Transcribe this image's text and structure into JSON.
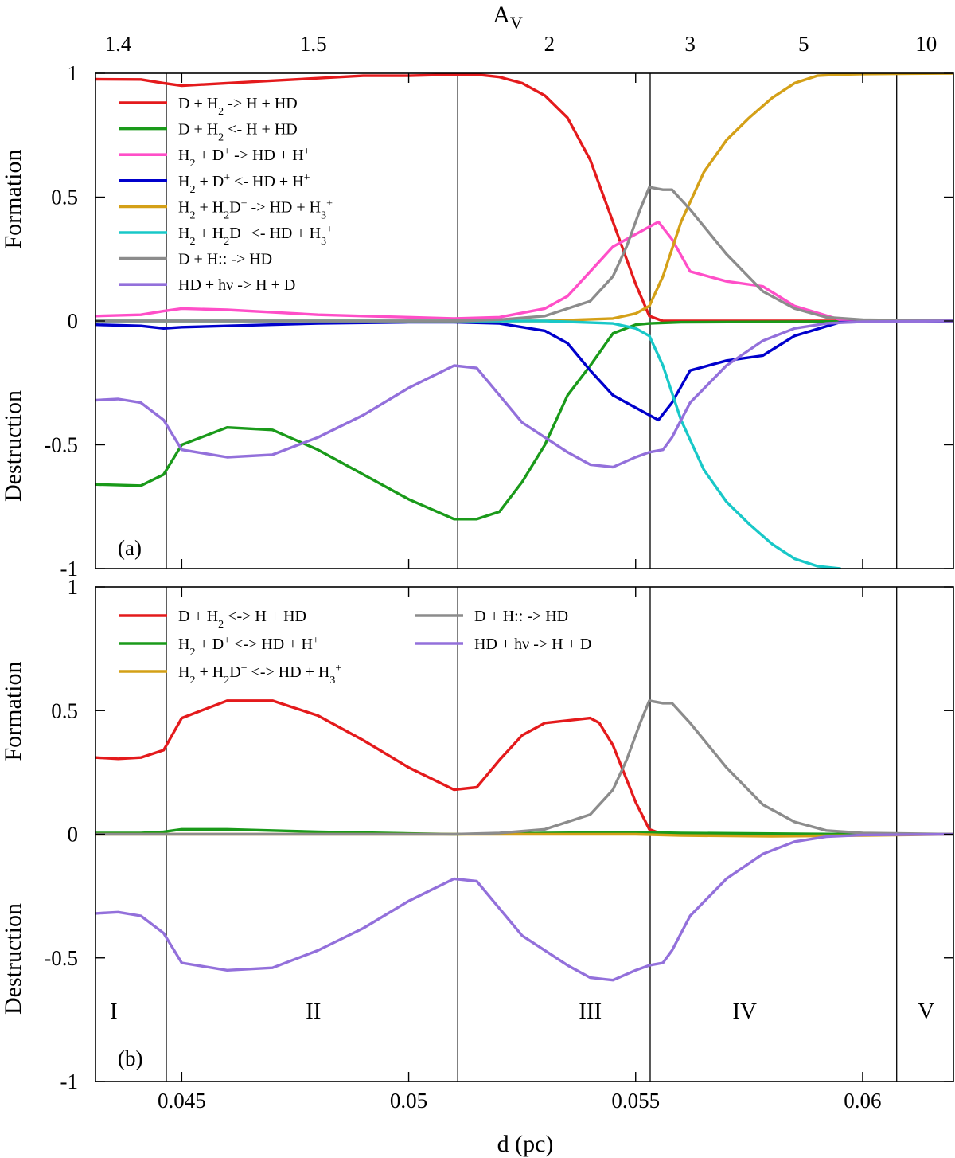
{
  "figure": {
    "xlabel": "d (pc)",
    "top_axis_label": "A",
    "top_axis_label_sub": "V",
    "formation_label": "Formation",
    "destruction_label": "Destruction"
  },
  "chart_data": [
    {
      "type": "line",
      "panel_label": "(a)",
      "xlim": [
        0.0431,
        0.062
      ],
      "ylim": [
        -1,
        1
      ],
      "x_ticks": [
        {
          "v": 0.045,
          "label": "0.045"
        },
        {
          "v": 0.05,
          "label": "0.05"
        },
        {
          "v": 0.055,
          "label": "0.055"
        },
        {
          "v": 0.06,
          "label": "0.06"
        }
      ],
      "y_ticks": [
        {
          "v": 1,
          "label": "1"
        },
        {
          "v": 0.5,
          "label": "0.5"
        },
        {
          "v": 0,
          "label": "0"
        },
        {
          "v": -0.5,
          "label": "-0.5"
        },
        {
          "v": -1,
          "label": "-1"
        }
      ],
      "top_ticks": [
        {
          "x": 0.0436,
          "label": "1.4"
        },
        {
          "x": 0.0479,
          "label": "1.5"
        },
        {
          "x": 0.0531,
          "label": "2"
        },
        {
          "x": 0.0562,
          "label": "3"
        },
        {
          "x": 0.0587,
          "label": "5"
        },
        {
          "x": 0.0614,
          "label": "10"
        }
      ],
      "region_boundaries": [
        0.04466,
        0.05108,
        0.05532,
        0.06075
      ],
      "legend_columns": 1,
      "series": [
        {
          "name": "D + H₂ -> H + HD",
          "color": "#e41a1c",
          "x": [
            0.0431,
            0.0441,
            0.0446,
            0.045,
            0.046,
            0.047,
            0.048,
            0.049,
            0.05,
            0.051,
            0.0515,
            0.052,
            0.0525,
            0.053,
            0.0535,
            0.054,
            0.0545,
            0.055,
            0.0553,
            0.0556,
            0.06,
            0.062
          ],
          "y": [
            0.976,
            0.975,
            0.96,
            0.95,
            0.96,
            0.97,
            0.98,
            0.99,
            0.99,
            0.995,
            0.995,
            0.985,
            0.96,
            0.91,
            0.82,
            0.65,
            0.4,
            0.15,
            0.02,
            0.0,
            0.0,
            0.0
          ]
        },
        {
          "name": "D + H₂ <- H + HD",
          "color": "#1a9a1a",
          "x": [
            0.0431,
            0.0441,
            0.0446,
            0.045,
            0.046,
            0.047,
            0.048,
            0.049,
            0.05,
            0.051,
            0.0515,
            0.052,
            0.0525,
            0.053,
            0.0535,
            0.054,
            0.0545,
            0.055,
            0.0553,
            0.056,
            0.062
          ],
          "y": [
            -0.66,
            -0.665,
            -0.62,
            -0.5,
            -0.43,
            -0.44,
            -0.52,
            -0.62,
            -0.72,
            -0.8,
            -0.8,
            -0.77,
            -0.65,
            -0.5,
            -0.3,
            -0.18,
            -0.05,
            -0.015,
            -0.01,
            -0.005,
            0.0
          ]
        },
        {
          "name": "H₂ + D⁺ -> HD + H⁺",
          "color": "#ff4fc8",
          "x": [
            0.0431,
            0.0441,
            0.0446,
            0.045,
            0.046,
            0.047,
            0.048,
            0.049,
            0.05,
            0.051,
            0.052,
            0.053,
            0.0535,
            0.054,
            0.0545,
            0.055,
            0.0553,
            0.0555,
            0.0558,
            0.0562,
            0.057,
            0.0578,
            0.0585,
            0.0595,
            0.062
          ],
          "y": [
            0.02,
            0.025,
            0.04,
            0.05,
            0.045,
            0.035,
            0.025,
            0.02,
            0.015,
            0.01,
            0.015,
            0.05,
            0.1,
            0.2,
            0.3,
            0.35,
            0.38,
            0.4,
            0.33,
            0.2,
            0.16,
            0.14,
            0.06,
            0.005,
            0.0
          ]
        },
        {
          "name": "H₂ + D⁺ <- HD + H⁺",
          "color": "#0000cc",
          "x": [
            0.0431,
            0.0441,
            0.0446,
            0.045,
            0.046,
            0.048,
            0.05,
            0.051,
            0.052,
            0.053,
            0.0535,
            0.054,
            0.0545,
            0.055,
            0.0553,
            0.0555,
            0.0558,
            0.0562,
            0.057,
            0.0578,
            0.0585,
            0.0595,
            0.062
          ],
          "y": [
            -0.015,
            -0.02,
            -0.03,
            -0.025,
            -0.02,
            -0.01,
            -0.005,
            -0.005,
            -0.01,
            -0.04,
            -0.09,
            -0.2,
            -0.3,
            -0.35,
            -0.38,
            -0.4,
            -0.33,
            -0.2,
            -0.16,
            -0.14,
            -0.06,
            -0.005,
            0.0
          ]
        },
        {
          "name": "H₂ + H₂D⁺ -> HD + H₃⁺",
          "color": "#d4a017",
          "x": [
            0.0431,
            0.053,
            0.0545,
            0.055,
            0.0553,
            0.0556,
            0.056,
            0.0565,
            0.057,
            0.0575,
            0.058,
            0.0585,
            0.059,
            0.0595,
            0.06,
            0.062
          ],
          "y": [
            0.0,
            0.0,
            0.01,
            0.03,
            0.06,
            0.18,
            0.4,
            0.6,
            0.73,
            0.82,
            0.9,
            0.96,
            0.99,
            0.995,
            0.997,
            1.0
          ]
        },
        {
          "name": "H₂ + H₂D⁺ <- HD + H₃⁺",
          "color": "#18c8c8",
          "x": [
            0.0431,
            0.053,
            0.0545,
            0.055,
            0.0553,
            0.0556,
            0.056,
            0.0565,
            0.057,
            0.0575,
            0.058,
            0.0585,
            0.059,
            0.0595
          ],
          "y": [
            0.0,
            0.0,
            -0.01,
            -0.03,
            -0.06,
            -0.18,
            -0.4,
            -0.6,
            -0.73,
            -0.82,
            -0.9,
            -0.96,
            -0.99,
            -1.0
          ]
        },
        {
          "name": "D + H:: -> HD",
          "color": "#8c8c8c",
          "x": [
            0.0431,
            0.05,
            0.051,
            0.052,
            0.053,
            0.054,
            0.0545,
            0.0548,
            0.0551,
            0.0553,
            0.0556,
            0.0558,
            0.0562,
            0.057,
            0.0578,
            0.0585,
            0.0592,
            0.06,
            0.062
          ],
          "y": [
            0.0,
            0.0,
            0.0,
            0.005,
            0.02,
            0.08,
            0.18,
            0.3,
            0.45,
            0.54,
            0.53,
            0.53,
            0.45,
            0.27,
            0.12,
            0.05,
            0.015,
            0.005,
            0.0
          ]
        },
        {
          "name": "HD + hν -> H + D",
          "color": "#9370db",
          "x": [
            0.0431,
            0.0436,
            0.0441,
            0.0446,
            0.045,
            0.046,
            0.047,
            0.048,
            0.049,
            0.05,
            0.051,
            0.0515,
            0.052,
            0.0525,
            0.053,
            0.0535,
            0.054,
            0.0545,
            0.055,
            0.0553,
            0.0556,
            0.0558,
            0.0562,
            0.057,
            0.0578,
            0.0585,
            0.0592,
            0.06,
            0.062
          ],
          "y": [
            -0.32,
            -0.315,
            -0.33,
            -0.4,
            -0.52,
            -0.55,
            -0.54,
            -0.47,
            -0.38,
            -0.27,
            -0.18,
            -0.19,
            -0.3,
            -0.41,
            -0.47,
            -0.53,
            -0.58,
            -0.59,
            -0.55,
            -0.53,
            -0.52,
            -0.47,
            -0.33,
            -0.18,
            -0.08,
            -0.03,
            -0.01,
            -0.003,
            0.0
          ]
        }
      ]
    },
    {
      "type": "line",
      "panel_label": "(b)",
      "xlim": [
        0.0431,
        0.062
      ],
      "ylim": [
        -1,
        1
      ],
      "x_ticks": [
        {
          "v": 0.045,
          "label": "0.045"
        },
        {
          "v": 0.05,
          "label": "0.05"
        },
        {
          "v": 0.055,
          "label": "0.055"
        },
        {
          "v": 0.06,
          "label": "0.06"
        }
      ],
      "y_ticks": [
        {
          "v": 1,
          "label": "1"
        },
        {
          "v": 0.5,
          "label": "0.5"
        },
        {
          "v": 0,
          "label": "0"
        },
        {
          "v": -0.5,
          "label": "-0.5"
        },
        {
          "v": -1,
          "label": "-1"
        }
      ],
      "region_boundaries": [
        0.04466,
        0.05108,
        0.05532,
        0.06075
      ],
      "regions": [
        {
          "label": "I",
          "x": 0.0435
        },
        {
          "label": "II",
          "x": 0.0479
        },
        {
          "label": "III",
          "x": 0.054
        },
        {
          "label": "IV",
          "x": 0.0574
        },
        {
          "label": "V",
          "x": 0.0614
        }
      ],
      "legend_columns": 2,
      "series": [
        {
          "name": "D + H₂ <-> H + HD",
          "color": "#e41a1c",
          "x": [
            0.0431,
            0.0436,
            0.0441,
            0.0446,
            0.045,
            0.046,
            0.047,
            0.048,
            0.049,
            0.05,
            0.051,
            0.0515,
            0.052,
            0.0525,
            0.053,
            0.0535,
            0.054,
            0.0542,
            0.0545,
            0.055,
            0.0553,
            0.0556,
            0.062
          ],
          "y": [
            0.31,
            0.305,
            0.31,
            0.34,
            0.47,
            0.54,
            0.54,
            0.48,
            0.38,
            0.27,
            0.18,
            0.19,
            0.3,
            0.4,
            0.45,
            0.46,
            0.47,
            0.45,
            0.36,
            0.13,
            0.02,
            0.0,
            0.0
          ]
        },
        {
          "name": "H₂ + D⁺ <-> HD + H⁺",
          "color": "#1a9a1a",
          "x": [
            0.0431,
            0.0441,
            0.0446,
            0.045,
            0.046,
            0.048,
            0.05,
            0.051,
            0.053,
            0.055,
            0.056,
            0.06,
            0.062
          ],
          "y": [
            0.005,
            0.005,
            0.01,
            0.02,
            0.02,
            0.01,
            0.003,
            0.0,
            0.005,
            0.008,
            0.005,
            0.0,
            0.0
          ]
        },
        {
          "name": "H₂ + H₂D⁺ <-> HD + H₃⁺",
          "color": "#d4a017",
          "x": [
            0.0431,
            0.053,
            0.055,
            0.056,
            0.058,
            0.06,
            0.062
          ],
          "y": [
            0.0,
            0.0,
            0.0,
            -0.005,
            -0.008,
            -0.005,
            0.0
          ]
        },
        {
          "name": "D + H:: -> HD",
          "color": "#8c8c8c",
          "x": [
            0.0431,
            0.05,
            0.051,
            0.052,
            0.053,
            0.054,
            0.0545,
            0.0548,
            0.0551,
            0.0553,
            0.0556,
            0.0558,
            0.0562,
            0.057,
            0.0578,
            0.0585,
            0.0592,
            0.06,
            0.062
          ],
          "y": [
            0.0,
            0.0,
            0.0,
            0.005,
            0.02,
            0.08,
            0.18,
            0.3,
            0.45,
            0.54,
            0.53,
            0.53,
            0.45,
            0.27,
            0.12,
            0.05,
            0.015,
            0.005,
            0.0
          ]
        },
        {
          "name": "HD + hν -> H + D",
          "color": "#9370db",
          "x": [
            0.0431,
            0.0436,
            0.0441,
            0.0446,
            0.045,
            0.046,
            0.047,
            0.048,
            0.049,
            0.05,
            0.051,
            0.0515,
            0.052,
            0.0525,
            0.053,
            0.0535,
            0.054,
            0.0545,
            0.055,
            0.0553,
            0.0556,
            0.0558,
            0.0562,
            0.057,
            0.0578,
            0.0585,
            0.0592,
            0.06,
            0.062
          ],
          "y": [
            -0.32,
            -0.315,
            -0.33,
            -0.4,
            -0.52,
            -0.55,
            -0.54,
            -0.47,
            -0.38,
            -0.27,
            -0.18,
            -0.19,
            -0.3,
            -0.41,
            -0.47,
            -0.53,
            -0.58,
            -0.59,
            -0.55,
            -0.53,
            -0.52,
            -0.47,
            -0.33,
            -0.18,
            -0.08,
            -0.03,
            -0.01,
            -0.003,
            0.0
          ]
        }
      ]
    }
  ]
}
